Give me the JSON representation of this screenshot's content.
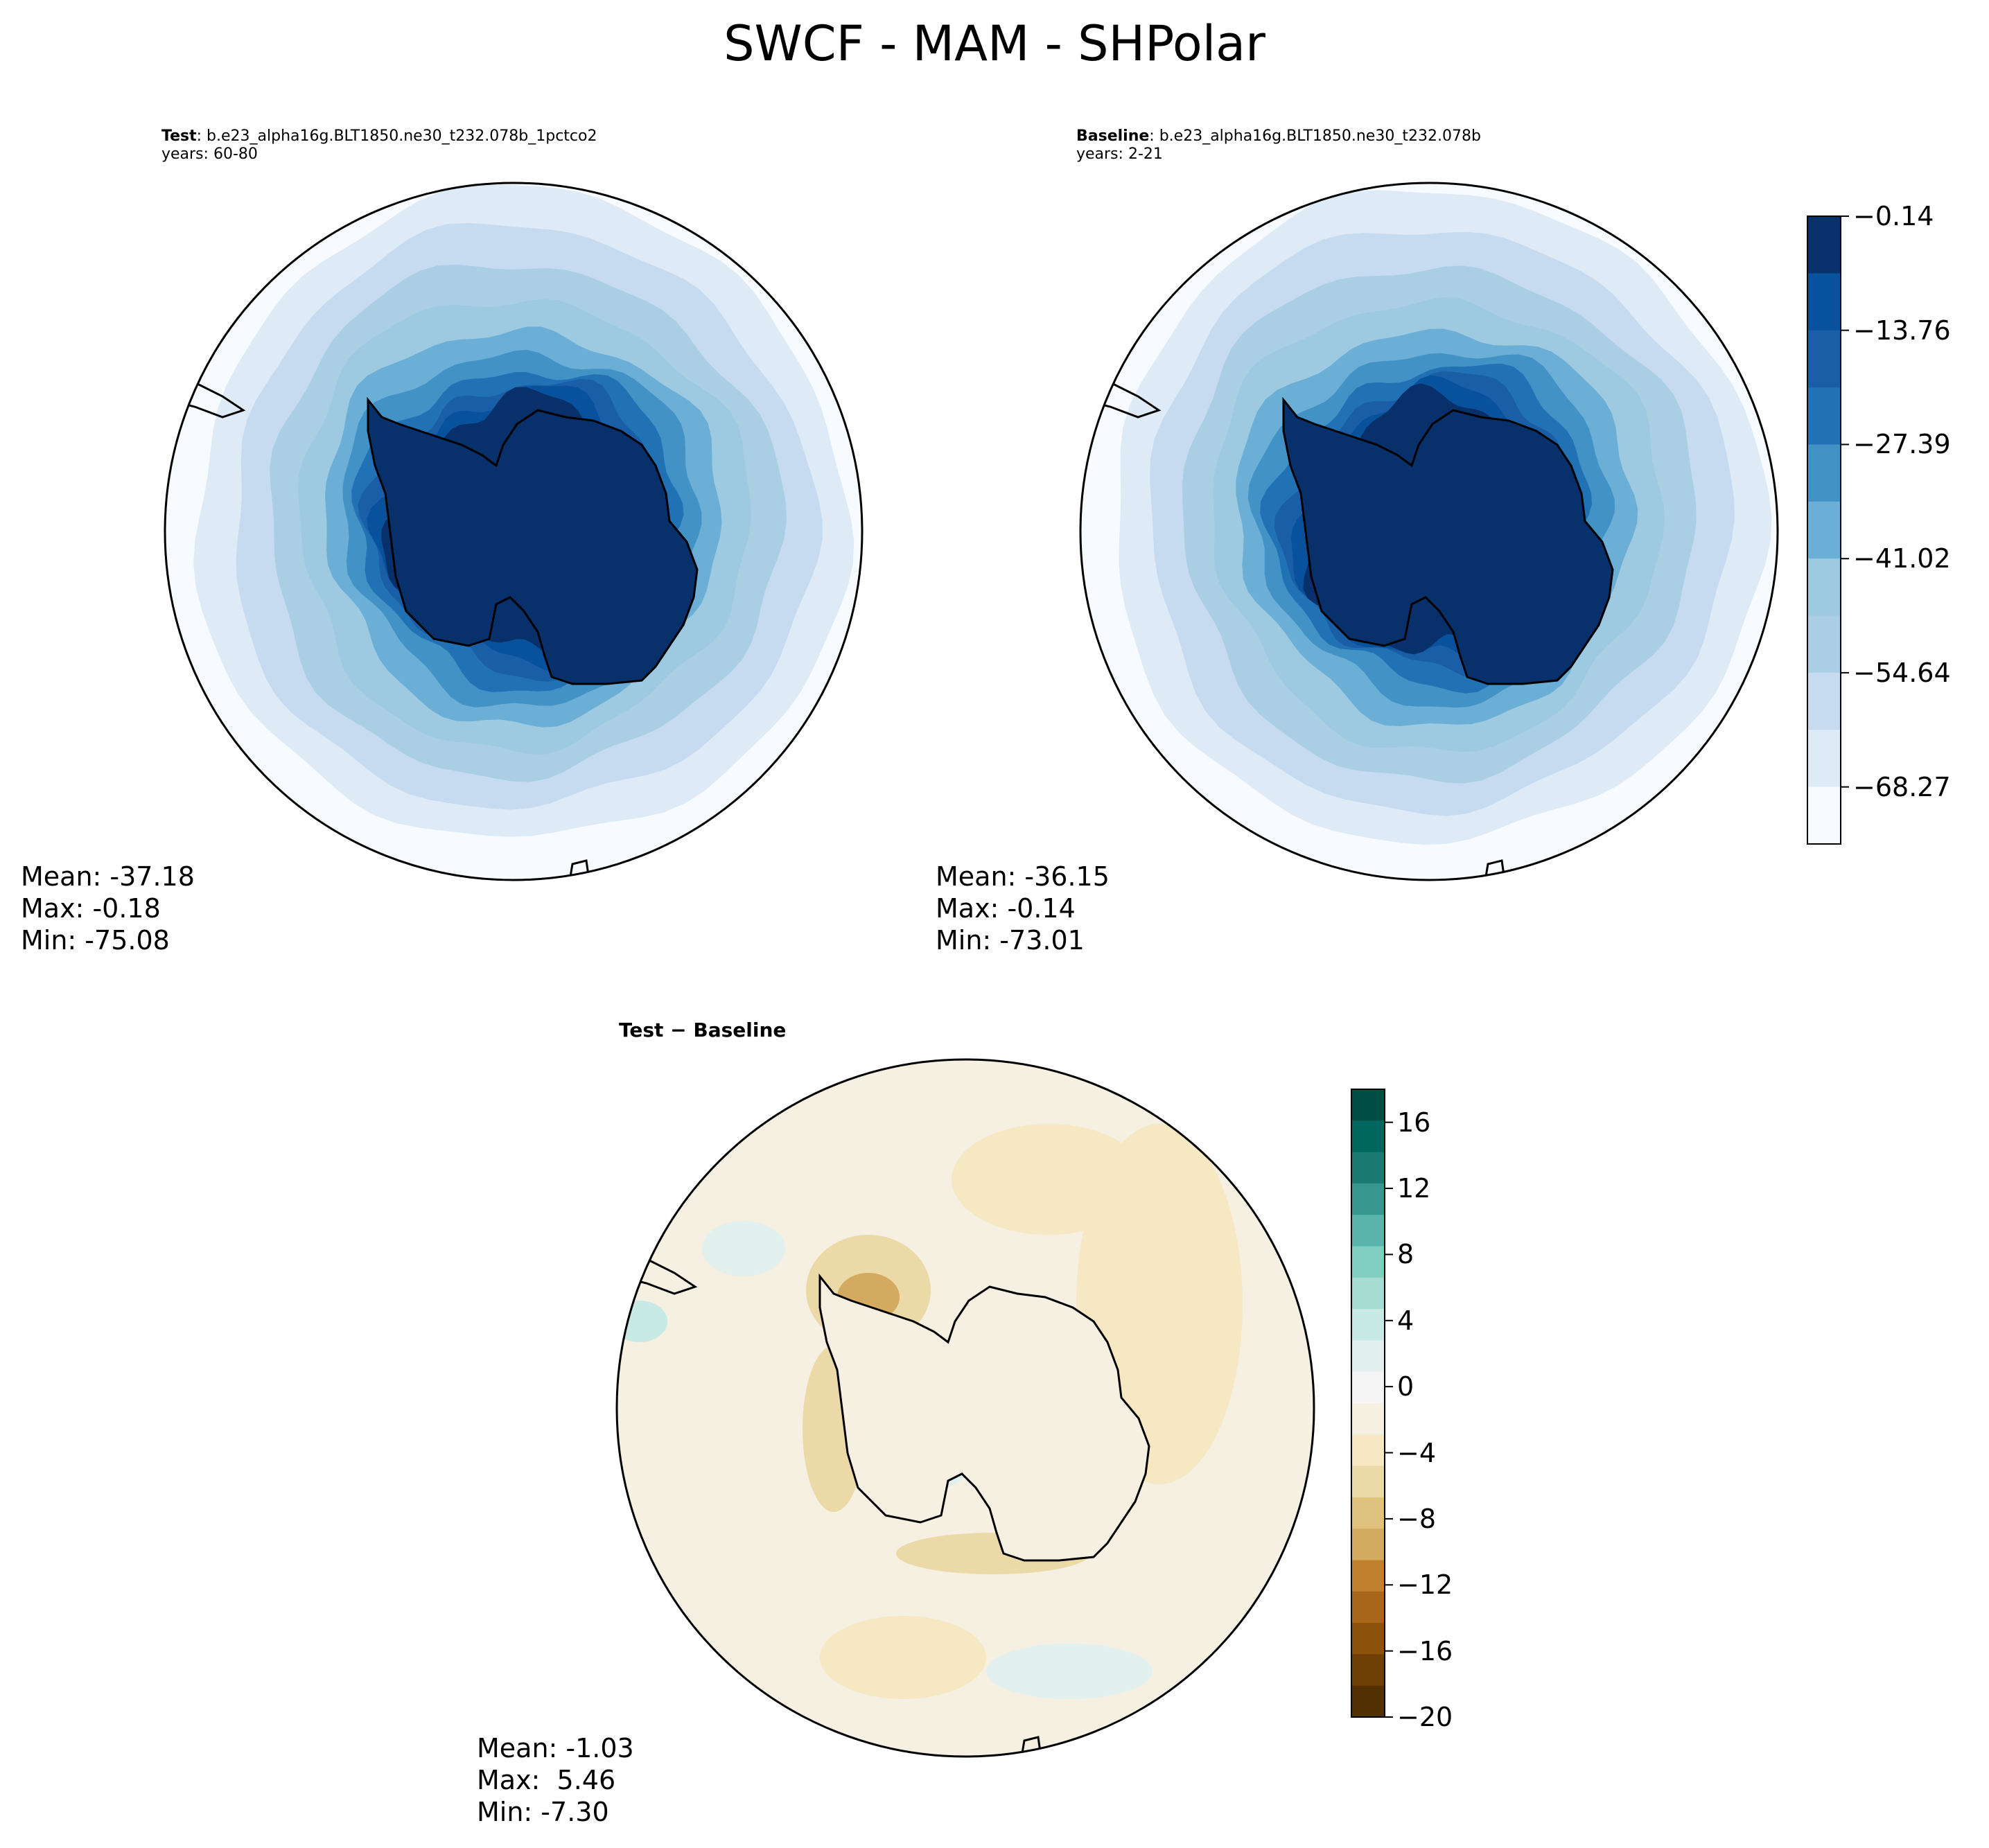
{
  "suptitle": "SWCF - MAM - SHPolar",
  "panels": {
    "test": {
      "label": "Test",
      "case": ": b.e23_alpha16g.BLT1850.ne30_t232.078b_1pctco2",
      "years": "years: 60-80",
      "mean": "Mean: -37.18",
      "max": "Max: -0.18",
      "min": "Min: -75.08"
    },
    "baseline": {
      "label": "Baseline",
      "case": ": b.e23_alpha16g.BLT1850.ne30_t232.078b",
      "years": "years: 2-21",
      "mean": "Mean: -36.15",
      "max": "Max: -0.14",
      "min": "Min: -73.01"
    },
    "diff": {
      "title": "Test − Baseline",
      "mean": "Mean: -1.03",
      "max": "Max:  5.46",
      "min": "Min: -7.30"
    }
  },
  "chart_data": [
    {
      "type": "heatmap",
      "projection": "south-polar-stereographic",
      "variable": "SWCF",
      "season": "MAM",
      "region": "SHPolar",
      "panel": "test",
      "stats": {
        "mean": -37.18,
        "max": -0.18,
        "min": -75.08
      }
    },
    {
      "type": "heatmap",
      "projection": "south-polar-stereographic",
      "variable": "SWCF",
      "season": "MAM",
      "region": "SHPolar",
      "panel": "baseline",
      "stats": {
        "mean": -36.15,
        "max": -0.14,
        "min": -73.01
      }
    },
    {
      "type": "heatmap",
      "projection": "south-polar-stereographic",
      "variable": "SWCF",
      "panel": "difference",
      "stats": {
        "mean": -1.03,
        "max": 5.46,
        "min": -7.3
      }
    }
  ],
  "colorbars": {
    "main": {
      "colormap": "Blues_r",
      "range": [
        -75.08,
        -0.14
      ],
      "ticks": [
        "−0.14",
        "−13.76",
        "−27.39",
        "−41.02",
        "−54.64",
        "−68.27"
      ],
      "tick_values": [
        -0.14,
        -13.76,
        -27.39,
        -41.02,
        -54.64,
        -68.27
      ],
      "levels": 11
    },
    "diff": {
      "colormap": "BrBG",
      "range": [
        -20,
        18
      ],
      "ticks": [
        "16",
        "12",
        "8",
        "4",
        "0",
        "−4",
        "−8",
        "−12",
        "−16",
        "−20"
      ],
      "tick_values": [
        16,
        12,
        8,
        4,
        0,
        -4,
        -8,
        -12,
        -16,
        -20
      ],
      "level_step": 2
    }
  },
  "colors": {
    "antarctica_fill": "#08306b",
    "blues": [
      "#f7fbff",
      "#deebf7",
      "#c6dbef",
      "#aacfe5",
      "#9ecae1",
      "#6baed6",
      "#4292c6",
      "#2171b5",
      "#1a5ea8",
      "#08519c",
      "#08306b"
    ],
    "brbg": [
      "#543005",
      "#6e4007",
      "#8c510a",
      "#a8661b",
      "#bf812d",
      "#d4aa60",
      "#dfc27d",
      "#ebd9a7",
      "#f6e8c3",
      "#f5f0e2",
      "#f5f5f5",
      "#e2f0ee",
      "#c7eae5",
      "#a5ddd3",
      "#80cdc1",
      "#5ab4ac",
      "#35978f",
      "#1b7b72",
      "#01665e",
      "#014e44"
    ]
  }
}
